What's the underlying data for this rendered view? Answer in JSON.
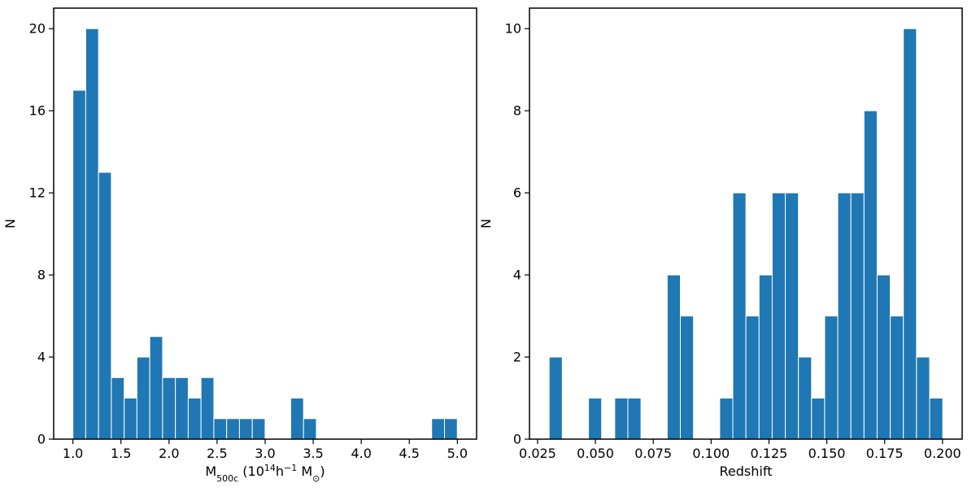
{
  "chart_data": [
    {
      "type": "bar",
      "title": "",
      "xlabel": "M500c (10^14 h^-1 M☉)",
      "xlabel_parts": {
        "main": "M",
        "sub": "500c",
        "rest1": " (10",
        "sup1": "14",
        "rest2": "h",
        "sup2": "−1",
        "rest3": " M",
        "sub2": "⊙",
        "rest4": ")"
      },
      "ylabel": "N",
      "xlim": [
        0.8,
        5.2
      ],
      "ylim": [
        0,
        21
      ],
      "xticks": [
        1.0,
        1.5,
        2.0,
        2.5,
        3.0,
        3.5,
        4.0,
        4.5,
        5.0
      ],
      "xtick_labels": [
        "1.0",
        "1.5",
        "2.0",
        "2.5",
        "3.0",
        "3.5",
        "4.0",
        "4.5",
        "5.0"
      ],
      "yticks": [
        0,
        4,
        8,
        12,
        16,
        20
      ],
      "ytick_labels": [
        "0",
        "4",
        "8",
        "12",
        "16",
        "20"
      ],
      "bin_start": 1.0,
      "bin_width": 0.1333,
      "values": [
        17,
        20,
        13,
        3,
        2,
        4,
        5,
        3,
        3,
        2,
        3,
        1,
        1,
        1,
        1,
        0,
        0,
        2,
        1,
        0,
        0,
        0,
        0,
        0,
        0,
        0,
        0,
        0,
        1,
        1
      ],
      "bar_color": "#1f77b4",
      "edge_color": "#ffffff",
      "grid": false
    },
    {
      "type": "bar",
      "title": "",
      "xlabel": "Redshift",
      "ylabel": "N",
      "xlim": [
        0.0215,
        0.2085
      ],
      "ylim": [
        0,
        10.5
      ],
      "xticks": [
        0.025,
        0.05,
        0.075,
        0.1,
        0.125,
        0.15,
        0.175,
        0.2
      ],
      "xtick_labels": [
        "0.025",
        "0.050",
        "0.075",
        "0.100",
        "0.125",
        "0.150",
        "0.175",
        "0.200"
      ],
      "yticks": [
        0,
        2,
        4,
        6,
        8,
        10
      ],
      "ytick_labels": [
        "0",
        "2",
        "4",
        "6",
        "8",
        "10"
      ],
      "bin_start": 0.03,
      "bin_width": 0.00567,
      "values": [
        2,
        0,
        0,
        1,
        0,
        1,
        1,
        0,
        0,
        4,
        3,
        0,
        0,
        1,
        6,
        3,
        4,
        6,
        6,
        2,
        1,
        3,
        6,
        6,
        8,
        4,
        3,
        10,
        2,
        1
      ],
      "bar_color": "#1f77b4",
      "edge_color": "#ffffff",
      "grid": false
    }
  ]
}
